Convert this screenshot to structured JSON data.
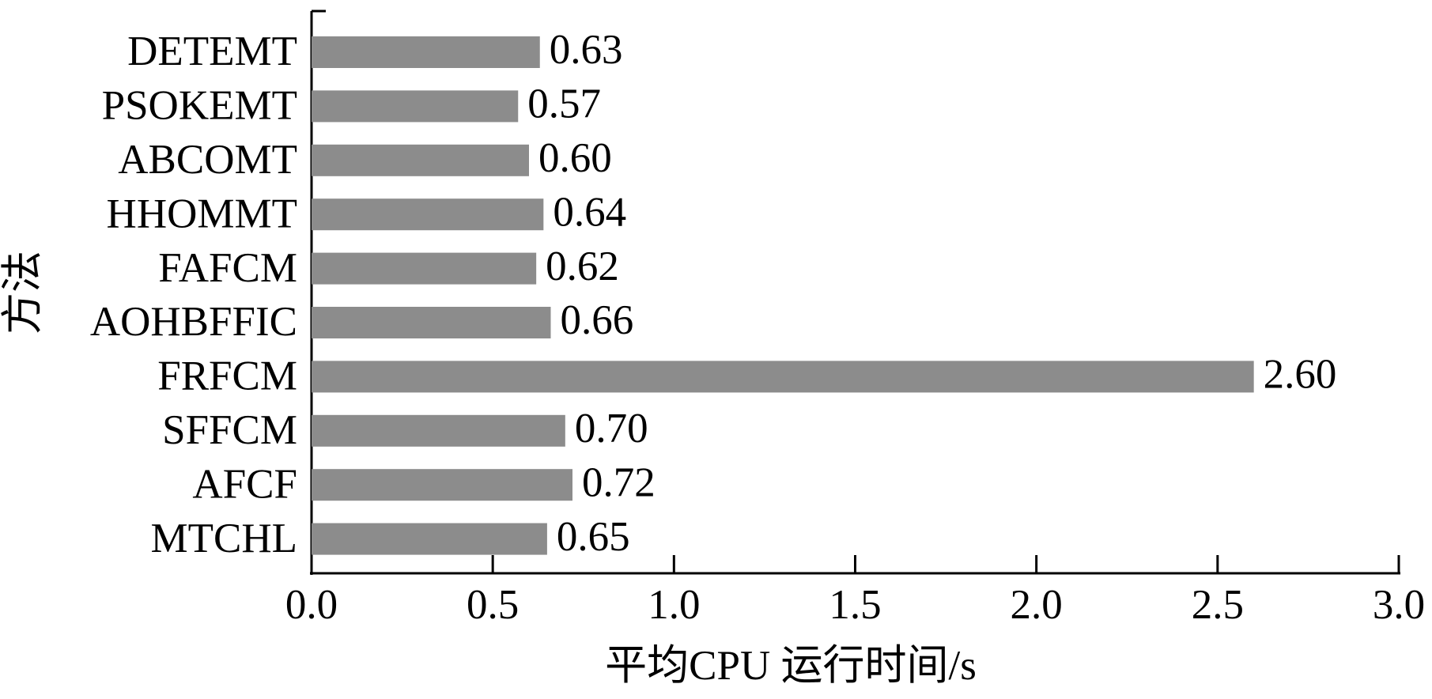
{
  "chart_data": {
    "type": "bar",
    "orientation": "horizontal",
    "xlabel": "平均CPU 运行时间/s",
    "ylabel": "方法",
    "categories": [
      "DETEMT",
      "PSOKEMT",
      "ABCOMT",
      "HHOMMT",
      "FAFCM",
      "AOHBFFIC",
      "FRFCM",
      "SFFCM",
      "AFCF",
      "MTCHL"
    ],
    "values": [
      0.63,
      0.57,
      0.6,
      0.64,
      0.62,
      0.66,
      2.6,
      0.7,
      0.72,
      0.65
    ],
    "value_labels": [
      "0.63",
      "0.57",
      "0.60",
      "0.64",
      "0.62",
      "0.66",
      "2.60",
      "0.70",
      "0.72",
      "0.65"
    ],
    "color": "#8c8c8c",
    "xlim": [
      0,
      3
    ],
    "xticks": [
      {
        "value": 0,
        "label": "0.0"
      },
      {
        "value": 0.5,
        "label": "0.5"
      },
      {
        "value": 1,
        "label": "1.0"
      },
      {
        "value": 1.5,
        "label": "1.5"
      },
      {
        "value": 2,
        "label": "2.0"
      },
      {
        "value": 2.5,
        "label": "2.5"
      },
      {
        "value": 3,
        "label": "3.0"
      }
    ],
    "grid": false
  }
}
